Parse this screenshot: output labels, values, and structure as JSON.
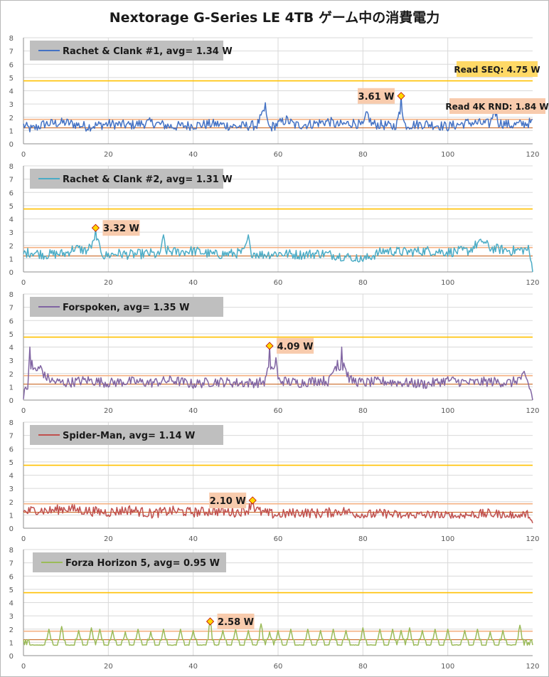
{
  "title": "Nextorage G-Series LE 4TB ゲーム中の消費電力",
  "colors": {
    "grid": "#d9d9d9",
    "axis": "#8c8c8c",
    "seq_line": "#ffc000",
    "rnd_line": "#f4b183",
    "ref_brown": "#c55a11",
    "legend_box": "#bfbfbf",
    "annot_box": "#f8cbad",
    "seq_box": "#ffd966",
    "marker_fill": "#ffd700",
    "marker_stroke": "#c00000"
  },
  "chart_data": [
    {
      "type": "line",
      "series_name": "Rachet & Clank #1",
      "legend": "Rachet & Clank #1,  avg=  1.34 W",
      "avg": 1.34,
      "color": "#4472c4",
      "max_label": "3.61 W",
      "max": {
        "x": 89,
        "y": 3.61
      },
      "ref_labels": {
        "seq": "Read SEQ:  4.75 W",
        "rnd": "Read 4K RND:  1.84 W"
      },
      "x_ticks": [
        0,
        20,
        40,
        60,
        80,
        100,
        120
      ],
      "y_ticks": [
        0,
        1,
        2,
        3,
        4,
        5,
        6,
        7,
        8
      ],
      "xlim": [
        0,
        120
      ],
      "ylim": [
        0,
        8
      ],
      "ref_lines": {
        "seq": 4.75,
        "rnd": 1.84,
        "base": 1.2
      },
      "key_points": [
        [
          0,
          1.4
        ],
        [
          1,
          1.2
        ],
        [
          2,
          1.1
        ],
        [
          5,
          1.5
        ],
        [
          10,
          1.6
        ],
        [
          15,
          1.3
        ],
        [
          20,
          1.5
        ],
        [
          25,
          1.4
        ],
        [
          30,
          1.6
        ],
        [
          35,
          1.3
        ],
        [
          40,
          1.4
        ],
        [
          45,
          1.5
        ],
        [
          50,
          1.3
        ],
        [
          55,
          1.4
        ],
        [
          56,
          2.0
        ],
        [
          57,
          3.1
        ],
        [
          57.5,
          1.6
        ],
        [
          58,
          1.2
        ],
        [
          60,
          1.5
        ],
        [
          62,
          1.8
        ],
        [
          64,
          1.4
        ],
        [
          68,
          1.5
        ],
        [
          72,
          1.7
        ],
        [
          74,
          1.4
        ],
        [
          78,
          1.6
        ],
        [
          80,
          1.3
        ],
        [
          81,
          2.3
        ],
        [
          82,
          1.5
        ],
        [
          85,
          1.4
        ],
        [
          87,
          1.3
        ],
        [
          88,
          1.5
        ],
        [
          89,
          3.61
        ],
        [
          89.5,
          1.8
        ],
        [
          90,
          1.4
        ],
        [
          95,
          1.5
        ],
        [
          100,
          1.3
        ],
        [
          105,
          1.6
        ],
        [
          110,
          1.5
        ],
        [
          111,
          2.6
        ],
        [
          112,
          1.6
        ],
        [
          115,
          1.4
        ],
        [
          120,
          1.6
        ]
      ]
    },
    {
      "type": "line",
      "series_name": "Rachet & Clank #2",
      "legend": "Rachet & Clank #2,  avg=  1.31 W",
      "avg": 1.31,
      "color": "#4bacc6",
      "max_label": "3.32 W",
      "max": {
        "x": 17,
        "y": 3.32
      },
      "x_ticks": [
        0,
        20,
        40,
        60,
        80,
        100,
        120
      ],
      "y_ticks": [
        0,
        1,
        2,
        3,
        4,
        5,
        6,
        7,
        8
      ],
      "xlim": [
        0,
        120
      ],
      "ylim": [
        0,
        8
      ],
      "ref_lines": {
        "seq": 4.75,
        "rnd": 1.84,
        "base": 1.2
      },
      "key_points": [
        [
          0,
          1.4
        ],
        [
          2,
          1.5
        ],
        [
          5,
          1.3
        ],
        [
          10,
          1.4
        ],
        [
          12,
          1.8
        ],
        [
          15,
          1.6
        ],
        [
          16,
          2.0
        ],
        [
          17,
          3.32
        ],
        [
          17.5,
          2.2
        ],
        [
          18,
          1.8
        ],
        [
          19,
          1.2
        ],
        [
          22,
          1.4
        ],
        [
          25,
          1.3
        ],
        [
          30,
          1.4
        ],
        [
          32,
          1.2
        ],
        [
          33,
          2.8
        ],
        [
          33.5,
          1.6
        ],
        [
          36,
          1.5
        ],
        [
          40,
          1.6
        ],
        [
          45,
          1.3
        ],
        [
          50,
          1.4
        ],
        [
          52,
          1.5
        ],
        [
          53,
          2.8
        ],
        [
          53.5,
          1.5
        ],
        [
          56,
          1.3
        ],
        [
          60,
          1.4
        ],
        [
          65,
          1.3
        ],
        [
          70,
          1.4
        ],
        [
          75,
          1.2
        ],
        [
          77,
          1.1
        ],
        [
          80,
          0.9
        ],
        [
          82,
          1.2
        ],
        [
          85,
          1.6
        ],
        [
          90,
          1.5
        ],
        [
          95,
          1.6
        ],
        [
          100,
          1.5
        ],
        [
          105,
          1.6
        ],
        [
          108,
          2.4
        ],
        [
          110,
          1.8
        ],
        [
          115,
          1.6
        ],
        [
          119,
          1.7
        ],
        [
          120,
          0.2
        ]
      ]
    },
    {
      "type": "line",
      "series_name": "Forspoken",
      "legend": "Forspoken,  avg=  1.35 W",
      "avg": 1.35,
      "color": "#8064a2",
      "max_label": "4.09 W",
      "max": {
        "x": 58,
        "y": 4.09
      },
      "x_ticks": [
        0,
        20,
        40,
        60,
        80,
        100,
        120
      ],
      "y_ticks": [
        0,
        1,
        2,
        3,
        4,
        5,
        6,
        7,
        8
      ],
      "xlim": [
        0,
        120
      ],
      "ylim": [
        0,
        8
      ],
      "ref_lines": {
        "seq": 4.75,
        "rnd": 1.84,
        "base": 1.2
      },
      "key_points": [
        [
          0,
          0.3
        ],
        [
          0.5,
          1.0
        ],
        [
          1,
          1.2
        ],
        [
          1.5,
          4.0
        ],
        [
          2,
          3.0
        ],
        [
          3,
          2.2
        ],
        [
          4,
          2.6
        ],
        [
          5,
          1.8
        ],
        [
          7,
          1.4
        ],
        [
          10,
          1.3
        ],
        [
          15,
          1.5
        ],
        [
          20,
          1.3
        ],
        [
          25,
          1.4
        ],
        [
          30,
          1.3
        ],
        [
          35,
          1.5
        ],
        [
          40,
          1.2
        ],
        [
          45,
          1.4
        ],
        [
          50,
          1.3
        ],
        [
          55,
          1.3
        ],
        [
          57,
          1.4
        ],
        [
          58,
          4.09
        ],
        [
          58.5,
          2.5
        ],
        [
          59,
          2.2
        ],
        [
          59.5,
          3.2
        ],
        [
          60,
          1.5
        ],
        [
          62,
          1.4
        ],
        [
          65,
          1.3
        ],
        [
          70,
          1.5
        ],
        [
          72,
          1.4
        ],
        [
          73,
          2.2
        ],
        [
          74,
          3.0
        ],
        [
          75,
          4.0
        ],
        [
          75.5,
          2.8
        ],
        [
          76,
          2.2
        ],
        [
          77,
          1.5
        ],
        [
          80,
          1.3
        ],
        [
          85,
          1.4
        ],
        [
          90,
          1.3
        ],
        [
          95,
          1.2
        ],
        [
          100,
          1.5
        ],
        [
          105,
          1.3
        ],
        [
          110,
          1.4
        ],
        [
          115,
          1.3
        ],
        [
          118,
          1.8
        ],
        [
          119,
          1.2
        ],
        [
          120,
          0.1
        ]
      ]
    },
    {
      "type": "line",
      "series_name": "Spider-Man",
      "legend": "Spider-Man,  avg=  1.14 W",
      "avg": 1.14,
      "color": "#c0504d",
      "max_label": "2.10 W",
      "max": {
        "x": 54,
        "y": 2.1
      },
      "x_ticks": [
        0,
        20,
        40,
        60,
        80,
        100,
        120
      ],
      "y_ticks": [
        0,
        1,
        2,
        3,
        4,
        5,
        6,
        7,
        8
      ],
      "xlim": [
        0,
        120
      ],
      "ylim": [
        0,
        8
      ],
      "ref_lines": {
        "seq": 4.75,
        "rnd": 1.84,
        "base": 1.2
      },
      "key_points": [
        [
          0,
          1.2
        ],
        [
          3,
          1.4
        ],
        [
          6,
          1.3
        ],
        [
          10,
          1.5
        ],
        [
          15,
          1.3
        ],
        [
          20,
          1.2
        ],
        [
          25,
          1.4
        ],
        [
          30,
          1.1
        ],
        [
          35,
          1.3
        ],
        [
          40,
          1.2
        ],
        [
          45,
          1.3
        ],
        [
          50,
          1.2
        ],
        [
          53,
          1.4
        ],
        [
          54,
          2.1
        ],
        [
          54.5,
          1.5
        ],
        [
          56,
          1.2
        ],
        [
          60,
          1.0
        ],
        [
          65,
          1.2
        ],
        [
          70,
          1.1
        ],
        [
          75,
          1.3
        ],
        [
          80,
          1.0
        ],
        [
          85,
          1.1
        ],
        [
          90,
          0.9
        ],
        [
          95,
          1.0
        ],
        [
          100,
          0.9
        ],
        [
          105,
          1.0
        ],
        [
          110,
          1.1
        ],
        [
          115,
          0.9
        ],
        [
          119,
          1.0
        ],
        [
          120,
          0.1
        ]
      ]
    },
    {
      "type": "line",
      "series_name": "Forza Horizon 5",
      "legend": "Forza Horizon 5,  avg=  0.95 W",
      "avg": 0.95,
      "color": "#9bbb59",
      "max_label": "2.58 W",
      "max": {
        "x": 44,
        "y": 2.58
      },
      "x_ticks": [
        0,
        20,
        40,
        60,
        80,
        100,
        120
      ],
      "y_ticks": [
        0,
        1,
        2,
        3,
        4,
        5,
        6,
        7,
        8
      ],
      "xlim": [
        0,
        120
      ],
      "ylim": [
        0,
        8
      ],
      "ref_lines": {
        "seq": 4.75,
        "rnd": 1.84,
        "base": 1.2
      },
      "baseline": 0.8,
      "spikes": [
        [
          0.5,
          1.2
        ],
        [
          6,
          2.0
        ],
        [
          9,
          2.2
        ],
        [
          13,
          1.9
        ],
        [
          16,
          2.1
        ],
        [
          18,
          2.0
        ],
        [
          21,
          1.9
        ],
        [
          24,
          1.8
        ],
        [
          27,
          2.0
        ],
        [
          30,
          1.8
        ],
        [
          33,
          2.0
        ],
        [
          37,
          2.0
        ],
        [
          40,
          1.9
        ],
        [
          44,
          2.58
        ],
        [
          47,
          1.9
        ],
        [
          50,
          2.0
        ],
        [
          53,
          1.9
        ],
        [
          56,
          2.4
        ],
        [
          58,
          1.8
        ],
        [
          60,
          1.9
        ],
        [
          63,
          2.0
        ],
        [
          67,
          2.0
        ],
        [
          70,
          1.9
        ],
        [
          73,
          2.0
        ],
        [
          76,
          1.9
        ],
        [
          80,
          2.1
        ],
        [
          84,
          2.0
        ],
        [
          87,
          2.0
        ],
        [
          89,
          1.9
        ],
        [
          91,
          2.1
        ],
        [
          94,
          1.9
        ],
        [
          97,
          2.0
        ],
        [
          100,
          2.0
        ],
        [
          104,
          1.9
        ],
        [
          107,
          2.0
        ],
        [
          110,
          1.8
        ],
        [
          113,
          1.9
        ],
        [
          117,
          2.3
        ],
        [
          119,
          1.0
        ]
      ]
    }
  ]
}
